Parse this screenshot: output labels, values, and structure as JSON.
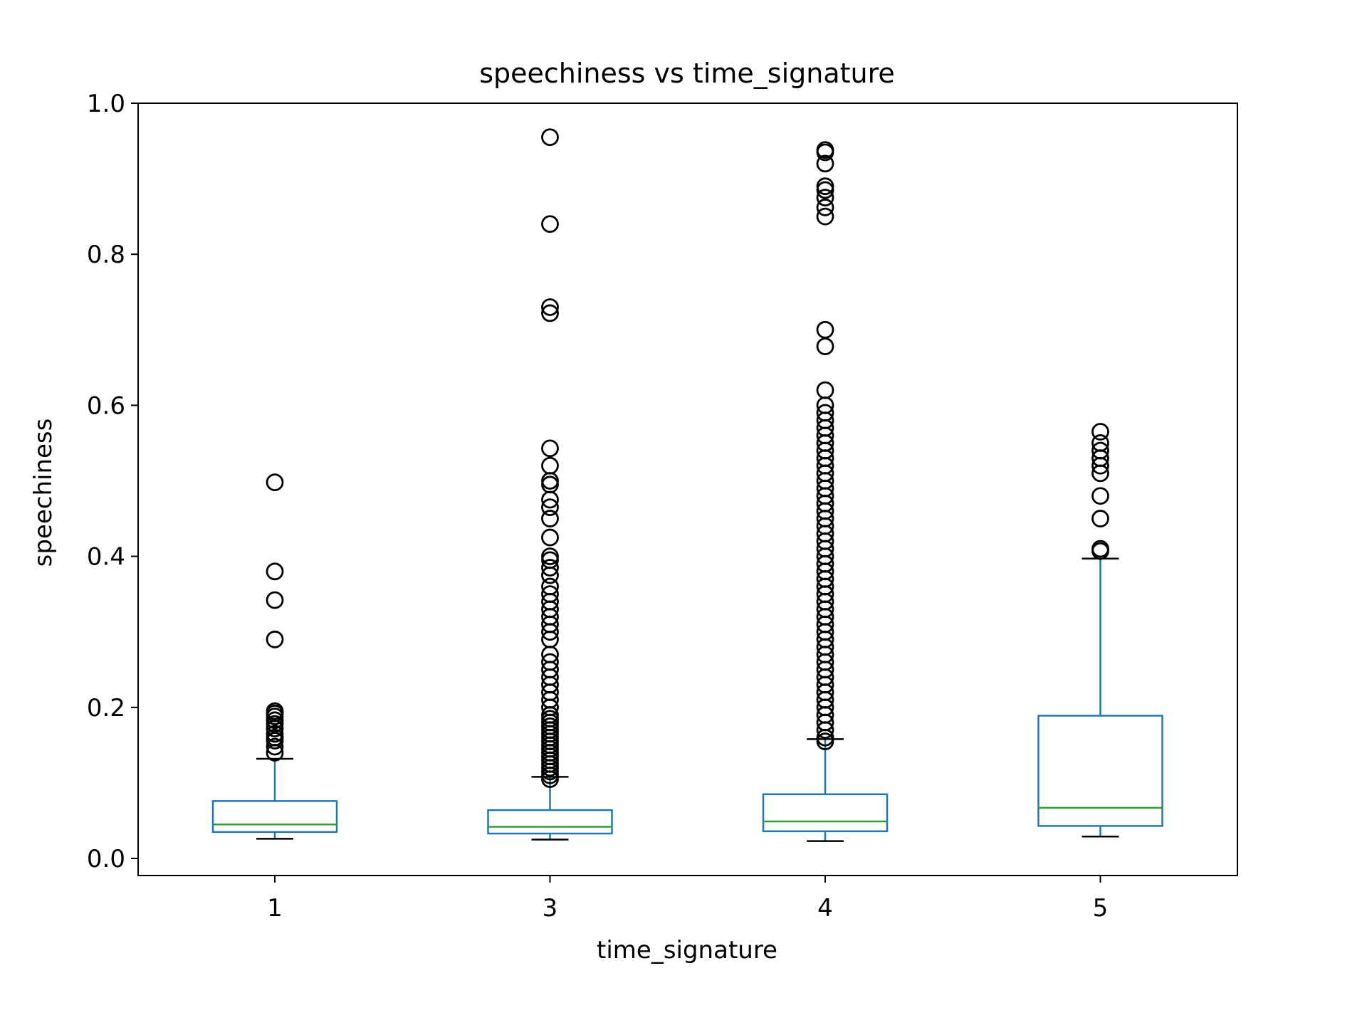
{
  "chart_data": {
    "type": "box",
    "title": "speechiness vs time_signature",
    "xlabel": "time_signature",
    "ylabel": "speechiness",
    "ylim": [
      -0.023,
      1.0
    ],
    "yticks": [
      0.0,
      0.2,
      0.4,
      0.6,
      0.8,
      1.0
    ],
    "ytick_labels": [
      "0.0",
      "0.2",
      "0.4",
      "0.6",
      "0.8",
      "1.0"
    ],
    "grid": false,
    "legend": "none",
    "colors": {
      "box": "#1f77b4",
      "median": "#2ca02c",
      "whisker_cap": "#000000",
      "flier": "#000000"
    },
    "categories": [
      "1",
      "3",
      "4",
      "5"
    ],
    "boxes": [
      {
        "category": "1",
        "whislo": 0.026,
        "q1": 0.035,
        "med": 0.045,
        "q3": 0.076,
        "whishi": 0.132,
        "fliers": [
          0.14,
          0.148,
          0.156,
          0.16,
          0.165,
          0.172,
          0.178,
          0.183,
          0.188,
          0.192,
          0.195,
          0.29,
          0.342,
          0.38,
          0.498
        ]
      },
      {
        "category": "3",
        "whislo": 0.025,
        "q1": 0.033,
        "med": 0.042,
        "q3": 0.064,
        "whishi": 0.108,
        "fliers": [
          0.105,
          0.11,
          0.115,
          0.12,
          0.125,
          0.13,
          0.135,
          0.14,
          0.145,
          0.15,
          0.155,
          0.16,
          0.165,
          0.17,
          0.175,
          0.18,
          0.185,
          0.19,
          0.2,
          0.21,
          0.22,
          0.23,
          0.24,
          0.25,
          0.26,
          0.27,
          0.29,
          0.3,
          0.31,
          0.32,
          0.33,
          0.34,
          0.35,
          0.36,
          0.375,
          0.385,
          0.395,
          0.4,
          0.425,
          0.45,
          0.465,
          0.475,
          0.495,
          0.5,
          0.52,
          0.543,
          0.722,
          0.73,
          0.84,
          0.955
        ]
      },
      {
        "category": "4",
        "whislo": 0.023,
        "q1": 0.036,
        "med": 0.049,
        "q3": 0.085,
        "whishi": 0.158,
        "fliers": [
          0.155,
          0.16,
          0.17,
          0.18,
          0.19,
          0.2,
          0.21,
          0.22,
          0.23,
          0.24,
          0.25,
          0.26,
          0.27,
          0.28,
          0.29,
          0.3,
          0.31,
          0.32,
          0.33,
          0.34,
          0.35,
          0.36,
          0.37,
          0.38,
          0.39,
          0.4,
          0.41,
          0.42,
          0.43,
          0.44,
          0.45,
          0.46,
          0.47,
          0.48,
          0.49,
          0.5,
          0.51,
          0.52,
          0.53,
          0.54,
          0.55,
          0.56,
          0.57,
          0.58,
          0.59,
          0.6,
          0.62,
          0.678,
          0.7,
          0.85,
          0.862,
          0.875,
          0.885,
          0.89,
          0.92,
          0.935,
          0.938
        ]
      },
      {
        "category": "5",
        "whislo": 0.029,
        "q1": 0.043,
        "med": 0.067,
        "q3": 0.189,
        "whishi": 0.397,
        "fliers": [
          0.407,
          0.41,
          0.45,
          0.48,
          0.51,
          0.52,
          0.53,
          0.54,
          0.55,
          0.565
        ]
      }
    ]
  }
}
